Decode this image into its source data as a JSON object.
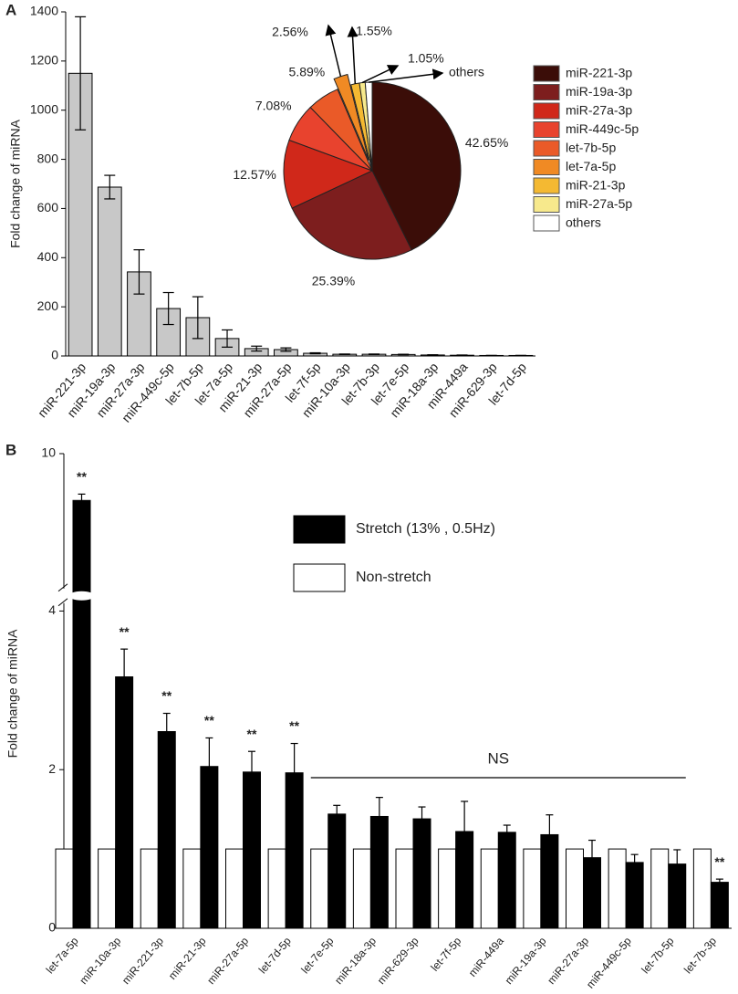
{
  "chart_data": [
    {
      "type": "bar",
      "panel": "A",
      "ylabel": "Fold change of  miRNA",
      "categories": [
        "miR-221-3p",
        "miR-19a-3p",
        "miR-27a-3p",
        "miR-449c-5p",
        "let-7b-5p",
        "let-7a-5p",
        "miR-21-3p",
        "miR-27a-5p",
        "let-7f-5p",
        "miR-10a-3p",
        "let-7b-3p",
        "let-7e-5p",
        "miR-18a-3p",
        "miR-449a",
        "miR-629-3p",
        "let-7d-5p"
      ],
      "values": [
        1150,
        687,
        342,
        193,
        156,
        71,
        30,
        26,
        11,
        7,
        7,
        6,
        4,
        3,
        2,
        2
      ],
      "errors": [
        230,
        48,
        90,
        65,
        85,
        35,
        10,
        7,
        2,
        1,
        1,
        1,
        1,
        1,
        0.5,
        0.5
      ],
      "color": "#c8c8c8",
      "ylim": [
        0,
        1400
      ],
      "yticks": [
        0,
        200,
        400,
        600,
        800,
        1000,
        1200,
        1400
      ]
    },
    {
      "type": "pie",
      "categories": [
        "miR-221-3p",
        "miR-19a-3p",
        "miR-27a-3p",
        "miR-449c-5p",
        "let-7b-5p",
        "let-7a-5p",
        "miR-21-3p",
        "miR-27a-5p",
        "others"
      ],
      "values": [
        42.65,
        25.39,
        12.57,
        7.08,
        5.89,
        2.56,
        1.55,
        1.05,
        1.26
      ],
      "value_labels": [
        "42.65%",
        "25.39%",
        "12.57%",
        "7.08%",
        "5.89%",
        "2.56%",
        "1.55%",
        "1.05%",
        null
      ],
      "colors": [
        "#3b0d08",
        "#7d1e1e",
        "#d0281a",
        "#e8432e",
        "#ea5a28",
        "#f08a24",
        "#f4b932",
        "#f7e98c",
        "#ffffff"
      ],
      "legend": "right"
    },
    {
      "type": "grouped-bar",
      "panel": "B",
      "ylabel": "Fold change of  miRNA",
      "categories": [
        "let-7a-5p",
        "miR-10a-3p",
        "miR-221-3p",
        "miR-21-3p",
        "miR-27a-5p",
        "let-7d-5p",
        "let-7e-5p",
        "miR-18a-3p",
        "miR-629-3p",
        "let-7f-5p",
        "miR-449a",
        "miR-19a-3p",
        "miR-27a-3p",
        "miR-449c-5p",
        "let-7b-5p",
        "let-7b-3p"
      ],
      "series": [
        {
          "name": "Stretch (13% , 0.5Hz)",
          "color": "#000000",
          "values": [
            9.41,
            3.17,
            2.48,
            2.04,
            1.97,
            1.96,
            1.44,
            1.41,
            1.38,
            1.22,
            1.21,
            1.18,
            0.89,
            0.83,
            0.81,
            0.58
          ],
          "errors": [
            0.08,
            0.35,
            0.23,
            0.36,
            0.26,
            0.37,
            0.11,
            0.24,
            0.15,
            0.38,
            0.09,
            0.25,
            0.22,
            0.1,
            0.18,
            0.04
          ]
        },
        {
          "name": "Non-stretch",
          "color": "#ffffff",
          "values": [
            1,
            1,
            1,
            1,
            1,
            1,
            1,
            1,
            1,
            1,
            1,
            1,
            1,
            1,
            1,
            1
          ]
        }
      ],
      "ylim": [
        0,
        10
      ],
      "ybreak": [
        4.1,
        8.3
      ],
      "yticks": [
        0,
        2,
        4,
        10
      ],
      "significance": [
        "**",
        "**",
        "**",
        "**",
        "**",
        "**",
        null,
        null,
        null,
        null,
        null,
        null,
        null,
        null,
        null,
        "**"
      ],
      "ns_label": "NS"
    }
  ]
}
